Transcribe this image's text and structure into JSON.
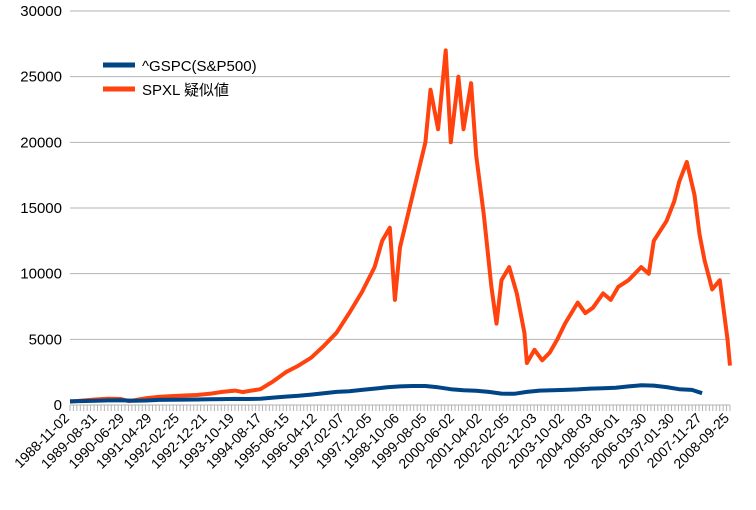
{
  "chart_data": {
    "type": "line",
    "title": "",
    "xlabel": "",
    "ylabel": "",
    "ylim": [
      0,
      30000
    ],
    "yticks": [
      0,
      5000,
      10000,
      15000,
      20000,
      25000,
      30000
    ],
    "grid": "y-major",
    "legend_position": "top-left",
    "x_tick_labels": [
      "1988-11-02",
      "1989-08-31",
      "1990-06-29",
      "1991-04-29",
      "1992-02-25",
      "1992-12-21",
      "1993-10-19",
      "1994-08-17",
      "1995-06-15",
      "1996-04-12",
      "1997-02-07",
      "1997-12-05",
      "1998-10-06",
      "1999-08-05",
      "2000-06-02",
      "2001-04-02",
      "2002-02-05",
      "2002-12-03",
      "2003-10-02",
      "2004-08-03",
      "2005-06-01",
      "2006-03-30",
      "2007-01-30",
      "2007-11-27",
      "2008-09-25"
    ],
    "series": [
      {
        "name": "^GSPC(S&P500)",
        "color": "#004586",
        "values": [
          [
            0,
            280
          ],
          [
            0.4,
            300
          ],
          [
            1,
            330
          ],
          [
            1.5,
            350
          ],
          [
            2,
            360
          ],
          [
            2.5,
            330
          ],
          [
            3,
            340
          ],
          [
            3.5,
            390
          ],
          [
            4,
            400
          ],
          [
            4.5,
            410
          ],
          [
            5,
            420
          ],
          [
            5.5,
            440
          ],
          [
            6,
            450
          ],
          [
            6.5,
            465
          ],
          [
            7,
            460
          ],
          [
            7.5,
            480
          ],
          [
            8,
            560
          ],
          [
            8.5,
            640
          ],
          [
            9,
            700
          ],
          [
            9.5,
            790
          ],
          [
            10,
            900
          ],
          [
            10.5,
            1000
          ],
          [
            11,
            1050
          ],
          [
            11.5,
            1150
          ],
          [
            12,
            1250
          ],
          [
            12.5,
            1350
          ],
          [
            13,
            1420
          ],
          [
            13.5,
            1450
          ],
          [
            14,
            1450
          ],
          [
            14.5,
            1350
          ],
          [
            15,
            1200
          ],
          [
            15.5,
            1120
          ],
          [
            16,
            1080
          ],
          [
            16.5,
            1000
          ],
          [
            17,
            870
          ],
          [
            17.5,
            850
          ],
          [
            18,
            1000
          ],
          [
            18.5,
            1100
          ],
          [
            19,
            1120
          ],
          [
            19.5,
            1150
          ],
          [
            20,
            1190
          ],
          [
            20.5,
            1250
          ],
          [
            21,
            1280
          ],
          [
            21.5,
            1320
          ],
          [
            22,
            1420
          ],
          [
            22.5,
            1500
          ],
          [
            23,
            1480
          ],
          [
            23.5,
            1360
          ],
          [
            24,
            1200
          ],
          [
            24.5,
            1150
          ],
          [
            24.9,
            900
          ]
        ]
      },
      {
        "name": "SPXL 疑似値",
        "color": "#ff420e",
        "values": [
          [
            0,
            250
          ],
          [
            0.4,
            320
          ],
          [
            1,
            420
          ],
          [
            1.5,
            480
          ],
          [
            2,
            460
          ],
          [
            2.3,
            300
          ],
          [
            2.6,
            380
          ],
          [
            3,
            520
          ],
          [
            3.5,
            620
          ],
          [
            4,
            680
          ],
          [
            4.5,
            720
          ],
          [
            5,
            760
          ],
          [
            5.5,
            850
          ],
          [
            6,
            1000
          ],
          [
            6.5,
            1100
          ],
          [
            6.8,
            980
          ],
          [
            7,
            1050
          ],
          [
            7.5,
            1200
          ],
          [
            8,
            1800
          ],
          [
            8.5,
            2500
          ],
          [
            9,
            3000
          ],
          [
            9.5,
            3600
          ],
          [
            10,
            4500
          ],
          [
            10.5,
            5500
          ],
          [
            11,
            7000
          ],
          [
            11.5,
            8600
          ],
          [
            12,
            10500
          ],
          [
            12.3,
            12500
          ],
          [
            12.6,
            13500
          ],
          [
            12.8,
            8000
          ],
          [
            13,
            12000
          ],
          [
            13.5,
            16000
          ],
          [
            14,
            20000
          ],
          [
            14.2,
            24000
          ],
          [
            14.5,
            21000
          ],
          [
            14.8,
            27000
          ],
          [
            15,
            20000
          ],
          [
            15.3,
            25000
          ],
          [
            15.5,
            21000
          ],
          [
            15.8,
            24500
          ],
          [
            16,
            19000
          ],
          [
            16.3,
            14500
          ],
          [
            16.6,
            9000
          ],
          [
            16.8,
            6200
          ],
          [
            17,
            9500
          ],
          [
            17.3,
            10500
          ],
          [
            17.6,
            8500
          ],
          [
            17.9,
            5500
          ],
          [
            18,
            3200
          ],
          [
            18.3,
            4200
          ],
          [
            18.6,
            3400
          ],
          [
            18.9,
            4000
          ],
          [
            19.2,
            5000
          ],
          [
            19.5,
            6200
          ],
          [
            20,
            7800
          ],
          [
            20.3,
            7000
          ],
          [
            20.6,
            7400
          ],
          [
            21,
            8500
          ],
          [
            21.3,
            8000
          ],
          [
            21.6,
            9000
          ],
          [
            22,
            9500
          ],
          [
            22.5,
            10500
          ],
          [
            22.8,
            10000
          ],
          [
            23,
            12500
          ],
          [
            23.5,
            14000
          ],
          [
            23.8,
            15500
          ],
          [
            24,
            17000
          ],
          [
            24.3,
            18500
          ],
          [
            24.6,
            16000
          ],
          [
            24.8,
            13000
          ],
          [
            25,
            11000
          ],
          [
            25.3,
            8800
          ],
          [
            25.6,
            9500
          ],
          [
            25.9,
            5000
          ],
          [
            26,
            3000
          ]
        ]
      }
    ]
  }
}
